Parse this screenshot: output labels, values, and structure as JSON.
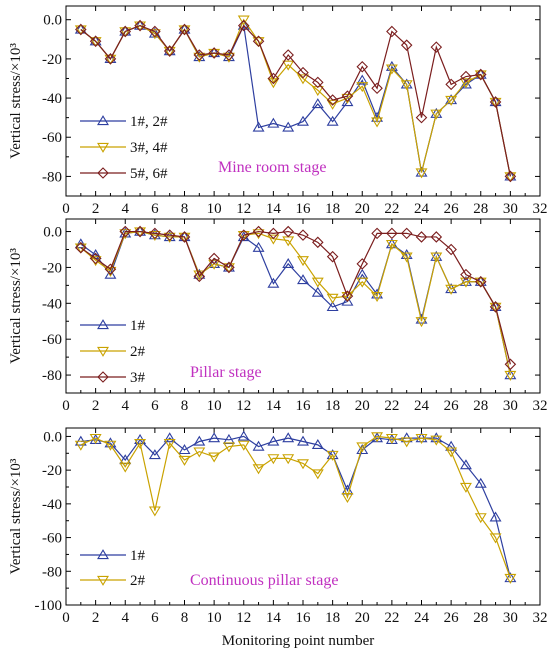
{
  "colors": {
    "blue": "#2e3fa0",
    "gold": "#c9a200",
    "maroon": "#7b1e1e",
    "stage_label": "#c030c0",
    "axis": "#000000"
  },
  "xlabel": "Monitoring point number",
  "chart_data": [
    {
      "type": "line",
      "ylabel": "Vertical stress/×10³",
      "stage_label": "Mine room stage",
      "xlim": [
        0,
        32
      ],
      "ylim": [
        -90,
        7
      ],
      "xticks": [
        0,
        2,
        4,
        6,
        8,
        10,
        12,
        14,
        16,
        18,
        20,
        22,
        24,
        26,
        28,
        30,
        32
      ],
      "yticks": [
        0,
        -20,
        -40,
        -60,
        -80
      ],
      "ytick_labels": [
        "0.0",
        "-20",
        "-40",
        "-60",
        "-80"
      ],
      "legend_position": "bottom-left",
      "x": [
        1,
        2,
        3,
        4,
        5,
        6,
        7,
        8,
        9,
        10,
        11,
        12,
        13,
        14,
        15,
        16,
        17,
        18,
        19,
        20,
        21,
        22,
        23,
        24,
        25,
        26,
        27,
        28,
        29,
        30
      ],
      "series": [
        {
          "name": "1#, 2#",
          "marker": "triangle-up",
          "color": "blue",
          "values": [
            -5,
            -11,
            -20,
            -6,
            -3,
            -7,
            -16,
            -5,
            -19,
            -17,
            -19,
            -3,
            -55,
            -53,
            -55,
            -52,
            -43,
            -52,
            -42,
            -31,
            -50,
            -24,
            -33,
            -78,
            -48,
            -41,
            -33,
            -28,
            -42,
            -80
          ]
        },
        {
          "name": "3#, 4#",
          "marker": "triangle-down",
          "color": "gold",
          "values": [
            -5,
            -11,
            -20,
            -6,
            -3,
            -7,
            -16,
            -5,
            -19,
            -17,
            -19,
            0,
            -11,
            -32,
            -23,
            -30,
            -36,
            -43,
            -40,
            -34,
            -52,
            -25,
            -33,
            -78,
            -48,
            -41,
            -32,
            -28,
            -42,
            -80
          ]
        },
        {
          "name": "5#, 6#",
          "marker": "diamond",
          "color": "maroon",
          "values": [
            -5,
            -11,
            -20,
            -6,
            -3,
            -6,
            -16,
            -5,
            -18,
            -17,
            -18,
            -3,
            -11,
            -30,
            -18,
            -27,
            -32,
            -41,
            -39,
            -24,
            -35,
            -6,
            -13,
            -50,
            -14,
            -33,
            -29,
            -28,
            -42,
            -80
          ]
        }
      ]
    },
    {
      "type": "line",
      "ylabel": "Vertical stress/×10³",
      "stage_label": "Pillar stage",
      "xlim": [
        0,
        32
      ],
      "ylim": [
        -90,
        7
      ],
      "xticks": [
        0,
        2,
        4,
        6,
        8,
        10,
        12,
        14,
        16,
        18,
        20,
        22,
        24,
        26,
        28,
        30,
        32
      ],
      "yticks": [
        0,
        -20,
        -40,
        -60,
        -80
      ],
      "ytick_labels": [
        "0.0",
        "-20",
        "-40",
        "-60",
        "-80"
      ],
      "legend_position": "bottom-left",
      "x": [
        1,
        2,
        3,
        4,
        5,
        6,
        7,
        8,
        9,
        10,
        11,
        12,
        13,
        14,
        15,
        16,
        17,
        18,
        19,
        20,
        21,
        22,
        23,
        24,
        25,
        26,
        27,
        28,
        29,
        30
      ],
      "series": [
        {
          "name": "1#",
          "marker": "triangle-up",
          "color": "blue",
          "values": [
            -7,
            -13,
            -24,
            -1,
            0,
            -2,
            -3,
            -3,
            -24,
            -18,
            -20,
            -3,
            -9,
            -29,
            -18,
            -27,
            -34,
            -42,
            -39,
            -24,
            -35,
            -7,
            -13,
            -49,
            -14,
            -32,
            -28,
            -28,
            -42,
            -80
          ]
        },
        {
          "name": "2#",
          "marker": "triangle-down",
          "color": "gold",
          "values": [
            -9,
            -16,
            -22,
            -1,
            0,
            -2,
            -3,
            -3,
            -24,
            -18,
            -20,
            -2,
            -1,
            -4,
            -5,
            -16,
            -28,
            -37,
            -36,
            -28,
            -36,
            -7,
            -14,
            -50,
            -14,
            -32,
            -28,
            -28,
            -42,
            -80
          ]
        },
        {
          "name": "3#",
          "marker": "diamond",
          "color": "maroon",
          "values": [
            -9,
            -15,
            -21,
            0,
            0,
            -1,
            -2,
            -3,
            -25,
            -15,
            -20,
            -2,
            0,
            -1,
            0,
            -2,
            -6,
            -14,
            -36,
            -18,
            -1,
            -1,
            -1,
            -3,
            -3,
            -10,
            -24,
            -28,
            -42,
            -74
          ]
        }
      ]
    },
    {
      "type": "line",
      "ylabel": "Vertical stress/×10³",
      "stage_label": "Continuous pillar stage",
      "xlim": [
        0,
        32
      ],
      "ylim": [
        -100,
        5
      ],
      "xticks": [
        0,
        2,
        4,
        6,
        8,
        10,
        12,
        14,
        16,
        18,
        20,
        22,
        24,
        26,
        28,
        30,
        32
      ],
      "yticks": [
        0,
        -20,
        -40,
        -60,
        -80,
        -100
      ],
      "ytick_labels": [
        "0.0",
        "-20",
        "-40",
        "-60",
        "-80",
        "-100"
      ],
      "legend_position": "bottom-left",
      "x": [
        1,
        2,
        3,
        4,
        5,
        6,
        7,
        8,
        9,
        10,
        11,
        12,
        13,
        14,
        15,
        16,
        17,
        18,
        19,
        20,
        21,
        22,
        23,
        24,
        25,
        26,
        27,
        28,
        29,
        30
      ],
      "series": [
        {
          "name": "1#",
          "marker": "triangle-up",
          "color": "blue",
          "values": [
            -3,
            -2,
            -4,
            -14,
            -2,
            -11,
            -1,
            -8,
            -3,
            -1,
            -2,
            0,
            -6,
            -3,
            -1,
            -3,
            -5,
            -11,
            -32,
            -8,
            -1,
            -2,
            -1,
            -1,
            -1,
            -6,
            -17,
            -28,
            -48,
            -84
          ]
        },
        {
          "name": "2#",
          "marker": "triangle-down",
          "color": "gold",
          "values": [
            -5,
            -1,
            -5,
            -18,
            -4,
            -44,
            -4,
            -14,
            -9,
            -12,
            -6,
            -5,
            -19,
            -13,
            -13,
            -16,
            -22,
            -11,
            -36,
            -6,
            0,
            -1,
            -3,
            -1,
            -2,
            -9,
            -30,
            -48,
            -60,
            -84
          ]
        }
      ]
    }
  ]
}
